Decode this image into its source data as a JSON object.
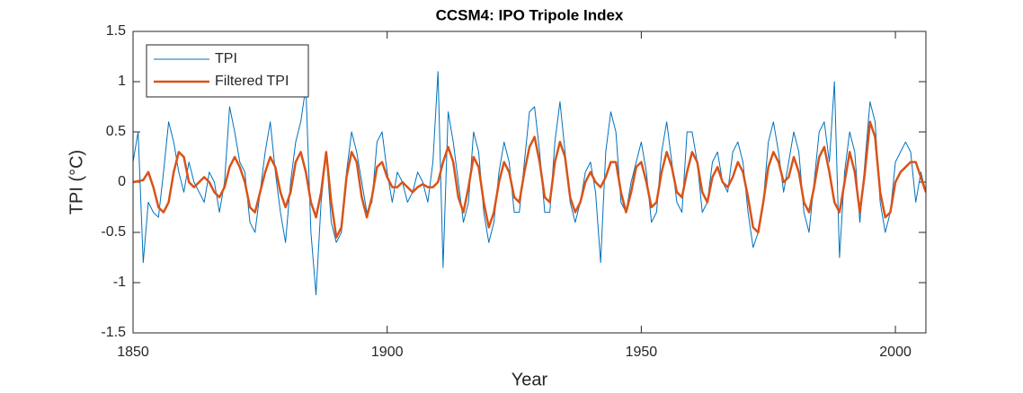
{
  "chart_data": {
    "type": "line",
    "title": "CCSM4: IPO Tripole Index",
    "xlabel": "Year",
    "ylabel": "TPI (°C)",
    "x": [
      1850,
      1851,
      1852,
      1853,
      1854,
      1855,
      1856,
      1857,
      1858,
      1859,
      1860,
      1861,
      1862,
      1863,
      1864,
      1865,
      1866,
      1867,
      1868,
      1869,
      1870,
      1871,
      1872,
      1873,
      1874,
      1875,
      1876,
      1877,
      1878,
      1879,
      1880,
      1881,
      1882,
      1883,
      1884,
      1885,
      1886,
      1887,
      1888,
      1889,
      1890,
      1891,
      1892,
      1893,
      1894,
      1895,
      1896,
      1897,
      1898,
      1899,
      1900,
      1901,
      1902,
      1903,
      1904,
      1905,
      1906,
      1907,
      1908,
      1909,
      1910,
      1911,
      1912,
      1913,
      1914,
      1915,
      1916,
      1917,
      1918,
      1919,
      1920,
      1921,
      1922,
      1923,
      1924,
      1925,
      1926,
      1927,
      1928,
      1929,
      1930,
      1931,
      1932,
      1933,
      1934,
      1935,
      1936,
      1937,
      1938,
      1939,
      1940,
      1941,
      1942,
      1943,
      1944,
      1945,
      1946,
      1947,
      1948,
      1949,
      1950,
      1951,
      1952,
      1953,
      1954,
      1955,
      1956,
      1957,
      1958,
      1959,
      1960,
      1961,
      1962,
      1963,
      1964,
      1965,
      1966,
      1967,
      1968,
      1969,
      1970,
      1971,
      1972,
      1973,
      1974,
      1975,
      1976,
      1977,
      1978,
      1979,
      1980,
      1981,
      1982,
      1983,
      1984,
      1985,
      1986,
      1987,
      1988,
      1989,
      1990,
      1991,
      1992,
      1993,
      1994,
      1995,
      1996,
      1997,
      1998,
      1999,
      2000,
      2001,
      2002,
      2003,
      2004,
      2005,
      2006
    ],
    "series": [
      {
        "name": "TPI",
        "color": "#0072BD",
        "width": 1,
        "values": [
          0.2,
          0.5,
          -0.8,
          -0.2,
          -0.3,
          -0.35,
          0.1,
          0.6,
          0.4,
          0.1,
          -0.1,
          0.2,
          0.0,
          -0.1,
          -0.2,
          0.1,
          0.0,
          -0.3,
          0.0,
          0.75,
          0.5,
          0.2,
          0.1,
          -0.4,
          -0.5,
          -0.1,
          0.3,
          0.6,
          0.1,
          -0.3,
          -0.6,
          0.0,
          0.4,
          0.6,
          0.95,
          -0.5,
          -1.12,
          -0.2,
          0.3,
          -0.4,
          -0.6,
          -0.5,
          0.1,
          0.5,
          0.3,
          0.0,
          -0.3,
          -0.2,
          0.4,
          0.5,
          0.1,
          -0.2,
          0.1,
          0.0,
          -0.2,
          -0.1,
          0.1,
          0.0,
          -0.2,
          0.2,
          1.1,
          -0.85,
          0.7,
          0.4,
          0.0,
          -0.4,
          -0.2,
          0.5,
          0.3,
          -0.3,
          -0.6,
          -0.4,
          0.1,
          0.4,
          0.2,
          -0.3,
          -0.3,
          0.2,
          0.7,
          0.75,
          0.3,
          -0.3,
          -0.3,
          0.4,
          0.8,
          0.3,
          -0.2,
          -0.4,
          -0.2,
          0.1,
          0.2,
          -0.1,
          -0.8,
          0.3,
          0.7,
          0.5,
          -0.2,
          -0.3,
          0.0,
          0.2,
          0.4,
          0.1,
          -0.4,
          -0.3,
          0.3,
          0.6,
          0.2,
          -0.2,
          -0.3,
          0.5,
          0.5,
          0.2,
          -0.3,
          -0.2,
          0.2,
          0.3,
          0.0,
          -0.1,
          0.3,
          0.4,
          0.2,
          -0.3,
          -0.65,
          -0.5,
          -0.2,
          0.4,
          0.6,
          0.3,
          -0.1,
          0.2,
          0.5,
          0.3,
          -0.3,
          -0.5,
          0.0,
          0.5,
          0.6,
          0.2,
          1.0,
          -0.75,
          0.1,
          0.5,
          0.3,
          -0.4,
          0.2,
          0.8,
          0.6,
          -0.2,
          -0.5,
          -0.3,
          0.2,
          0.3,
          0.4,
          0.3,
          -0.2,
          0.1,
          -0.1
        ]
      },
      {
        "name": "Filtered TPI",
        "color": "#D95319",
        "width": 2.5,
        "values": [
          0,
          0.01,
          0.02,
          0.1,
          -0.05,
          -0.25,
          -0.3,
          -0.2,
          0.1,
          0.3,
          0.25,
          0,
          -0.05,
          0,
          0.05,
          0,
          -0.1,
          -0.15,
          -0.05,
          0.15,
          0.25,
          0.15,
          0,
          -0.25,
          -0.3,
          -0.1,
          0.1,
          0.25,
          0.15,
          -0.1,
          -0.25,
          -0.1,
          0.2,
          0.3,
          0.1,
          -0.2,
          -0.35,
          -0.1,
          0.3,
          -0.2,
          -0.55,
          -0.45,
          0.05,
          0.3,
          0.2,
          -0.15,
          -0.35,
          -0.15,
          0.15,
          0.2,
          0.05,
          -0.05,
          -0.05,
          0,
          -0.05,
          -0.1,
          -0.05,
          -0.02,
          -0.05,
          -0.05,
          0,
          0.2,
          0.35,
          0.2,
          -0.15,
          -0.3,
          -0.05,
          0.25,
          0.15,
          -0.2,
          -0.45,
          -0.3,
          0,
          0.2,
          0.1,
          -0.15,
          -0.2,
          0.1,
          0.35,
          0.45,
          0.2,
          -0.15,
          -0.2,
          0.2,
          0.4,
          0.25,
          -0.15,
          -0.3,
          -0.2,
          0,
          0.1,
          0,
          -0.05,
          0.05,
          0.2,
          0.2,
          -0.1,
          -0.3,
          -0.1,
          0.15,
          0.2,
          0,
          -0.25,
          -0.2,
          0.1,
          0.3,
          0.15,
          -0.1,
          -0.15,
          0.1,
          0.3,
          0.2,
          -0.1,
          -0.2,
          0.05,
          0.15,
          0,
          -0.05,
          0.05,
          0.2,
          0.1,
          -0.15,
          -0.45,
          -0.5,
          -0.2,
          0.15,
          0.3,
          0.2,
          0,
          0.05,
          0.25,
          0.1,
          -0.2,
          -0.3,
          -0.05,
          0.25,
          0.35,
          0.1,
          -0.2,
          -0.3,
          0,
          0.3,
          0.1,
          -0.3,
          0.1,
          0.6,
          0.45,
          -0.1,
          -0.35,
          -0.3,
          0,
          0.1,
          0.15,
          0.2,
          0.2,
          0.05,
          -0.1
        ]
      }
    ],
    "xlim": [
      1850,
      2006
    ],
    "xticks": [
      1850,
      1900,
      1950,
      2000
    ],
    "ylim": [
      -1.5,
      1.5
    ],
    "yticks": [
      -1.5,
      -1,
      -0.5,
      0,
      0.5,
      1,
      1.5
    ],
    "grid": false,
    "legend": "upper-left"
  }
}
